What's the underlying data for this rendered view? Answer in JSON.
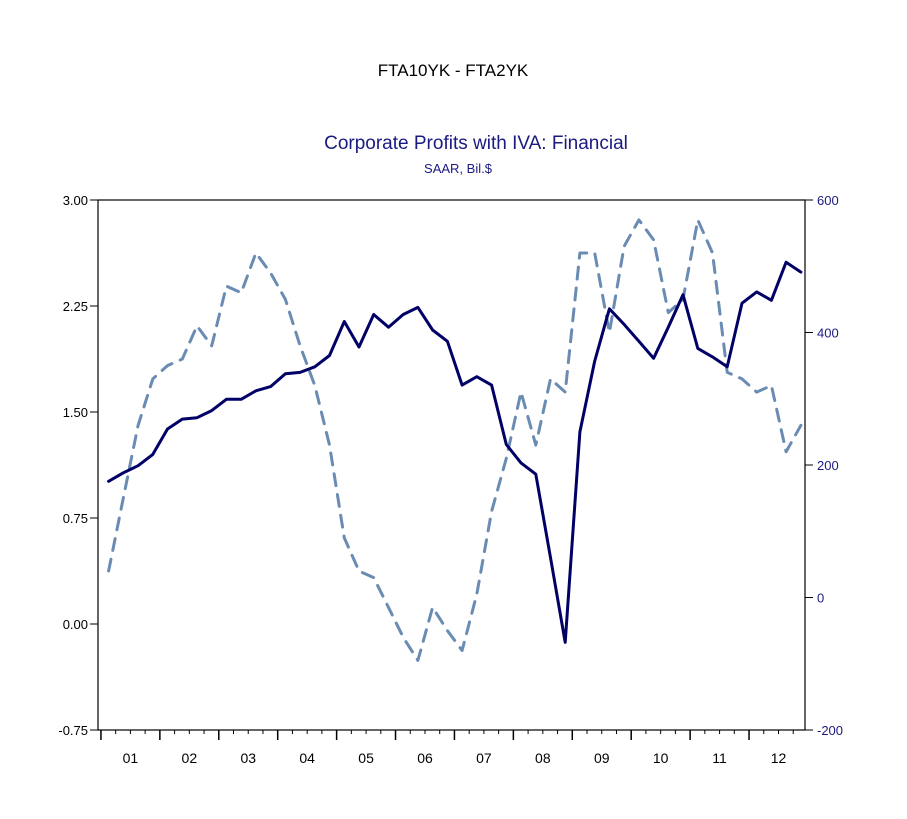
{
  "chart_data": {
    "type": "line",
    "title": "FTA10YK - FTA2YK",
    "subtitle": "Corporate Profits with IVA: Financial",
    "subtitle_units": "SAAR, Bil.$",
    "colors": {
      "title": "#000000",
      "subtitle": "#1a1a80",
      "left_series": "#000066",
      "right_series": "#6a8cb3",
      "axis": "#000000",
      "right_axis_labels": "#1a1a80"
    },
    "grid": false,
    "legend": "none",
    "left_axis": {
      "ylim": [
        -0.75,
        3.0
      ],
      "tick_labels": [
        "3.00",
        "2.25",
        "1.50",
        "0.75",
        "0.00",
        "-0.75"
      ],
      "tick_values": [
        3.0,
        2.25,
        1.5,
        0.75,
        0.0,
        -0.75
      ]
    },
    "right_axis": {
      "ylim": [
        -200,
        600
      ],
      "tick_labels": [
        "600",
        "400",
        "200",
        "0",
        "-200"
      ],
      "tick_values": [
        600,
        400,
        200,
        0,
        -200
      ]
    },
    "x_axis": {
      "xlim": [
        2000.95,
        2012.95
      ],
      "tick_labels": [
        "01",
        "02",
        "03",
        "04",
        "05",
        "06",
        "07",
        "08",
        "09",
        "10",
        "11",
        "12"
      ],
      "label_positions": [
        2001.5,
        2002.5,
        2003.5,
        2004.5,
        2005.5,
        2006.5,
        2007.5,
        2008.5,
        2009.5,
        2010.5,
        2011.5,
        2012.5
      ]
    },
    "series": [
      {
        "axis": "left",
        "style": "solid",
        "points": [
          [
            2001.13,
            1.01
          ],
          [
            2001.38,
            1.07
          ],
          [
            2001.63,
            1.12
          ],
          [
            2001.88,
            1.2
          ],
          [
            2002.13,
            1.38
          ],
          [
            2002.38,
            1.45
          ],
          [
            2002.63,
            1.46
          ],
          [
            2002.88,
            1.51
          ],
          [
            2003.13,
            1.59
          ],
          [
            2003.38,
            1.59
          ],
          [
            2003.63,
            1.65
          ],
          [
            2003.88,
            1.68
          ],
          [
            2004.13,
            1.77
          ],
          [
            2004.38,
            1.78
          ],
          [
            2004.63,
            1.82
          ],
          [
            2004.88,
            1.9
          ],
          [
            2005.13,
            2.14
          ],
          [
            2005.38,
            1.96
          ],
          [
            2005.63,
            2.19
          ],
          [
            2005.88,
            2.1
          ],
          [
            2006.13,
            2.19
          ],
          [
            2006.38,
            2.24
          ],
          [
            2006.63,
            2.08
          ],
          [
            2006.88,
            2.0
          ],
          [
            2007.13,
            1.69
          ],
          [
            2007.38,
            1.75
          ],
          [
            2007.63,
            1.69
          ],
          [
            2007.88,
            1.27
          ],
          [
            2008.13,
            1.14
          ],
          [
            2008.38,
            1.06
          ],
          [
            2008.63,
            0.47
          ],
          [
            2008.88,
            -0.13
          ],
          [
            2009.13,
            1.36
          ],
          [
            2009.38,
            1.86
          ],
          [
            2009.63,
            2.23
          ],
          [
            2009.88,
            2.12
          ],
          [
            2010.13,
            2.0
          ],
          [
            2010.38,
            1.88
          ],
          [
            2010.63,
            2.1
          ],
          [
            2010.88,
            2.33
          ],
          [
            2011.13,
            1.95
          ],
          [
            2011.38,
            1.89
          ],
          [
            2011.63,
            1.82
          ],
          [
            2011.88,
            2.27
          ],
          [
            2012.13,
            2.35
          ],
          [
            2012.38,
            2.29
          ],
          [
            2012.63,
            2.56
          ],
          [
            2012.88,
            2.49
          ]
        ]
      },
      {
        "axis": "right",
        "style": "dashed",
        "points": [
          [
            2001.13,
            40
          ],
          [
            2001.38,
            150
          ],
          [
            2001.63,
            260
          ],
          [
            2001.88,
            330
          ],
          [
            2002.13,
            350
          ],
          [
            2002.38,
            360
          ],
          [
            2002.63,
            410
          ],
          [
            2002.88,
            380
          ],
          [
            2003.13,
            470
          ],
          [
            2003.38,
            460
          ],
          [
            2003.63,
            520
          ],
          [
            2003.88,
            490
          ],
          [
            2004.13,
            450
          ],
          [
            2004.38,
            380
          ],
          [
            2004.63,
            320
          ],
          [
            2004.88,
            230
          ],
          [
            2005.13,
            90
          ],
          [
            2005.38,
            40
          ],
          [
            2005.63,
            30
          ],
          [
            2005.88,
            -15
          ],
          [
            2006.13,
            -60
          ],
          [
            2006.38,
            -95
          ],
          [
            2006.63,
            -15
          ],
          [
            2006.88,
            -50
          ],
          [
            2007.13,
            -80
          ],
          [
            2007.38,
            5
          ],
          [
            2007.63,
            130
          ],
          [
            2007.88,
            210
          ],
          [
            2008.13,
            310
          ],
          [
            2008.38,
            230
          ],
          [
            2008.63,
            330
          ],
          [
            2008.88,
            310
          ],
          [
            2009.13,
            520
          ],
          [
            2009.38,
            520
          ],
          [
            2009.63,
            400
          ],
          [
            2009.88,
            530
          ],
          [
            2010.13,
            570
          ],
          [
            2010.38,
            540
          ],
          [
            2010.63,
            430
          ],
          [
            2010.88,
            450
          ],
          [
            2011.13,
            570
          ],
          [
            2011.38,
            520
          ],
          [
            2011.63,
            340
          ],
          [
            2011.88,
            330
          ],
          [
            2012.13,
            310
          ],
          [
            2012.38,
            320
          ],
          [
            2012.63,
            220
          ],
          [
            2012.88,
            260
          ]
        ]
      }
    ]
  }
}
